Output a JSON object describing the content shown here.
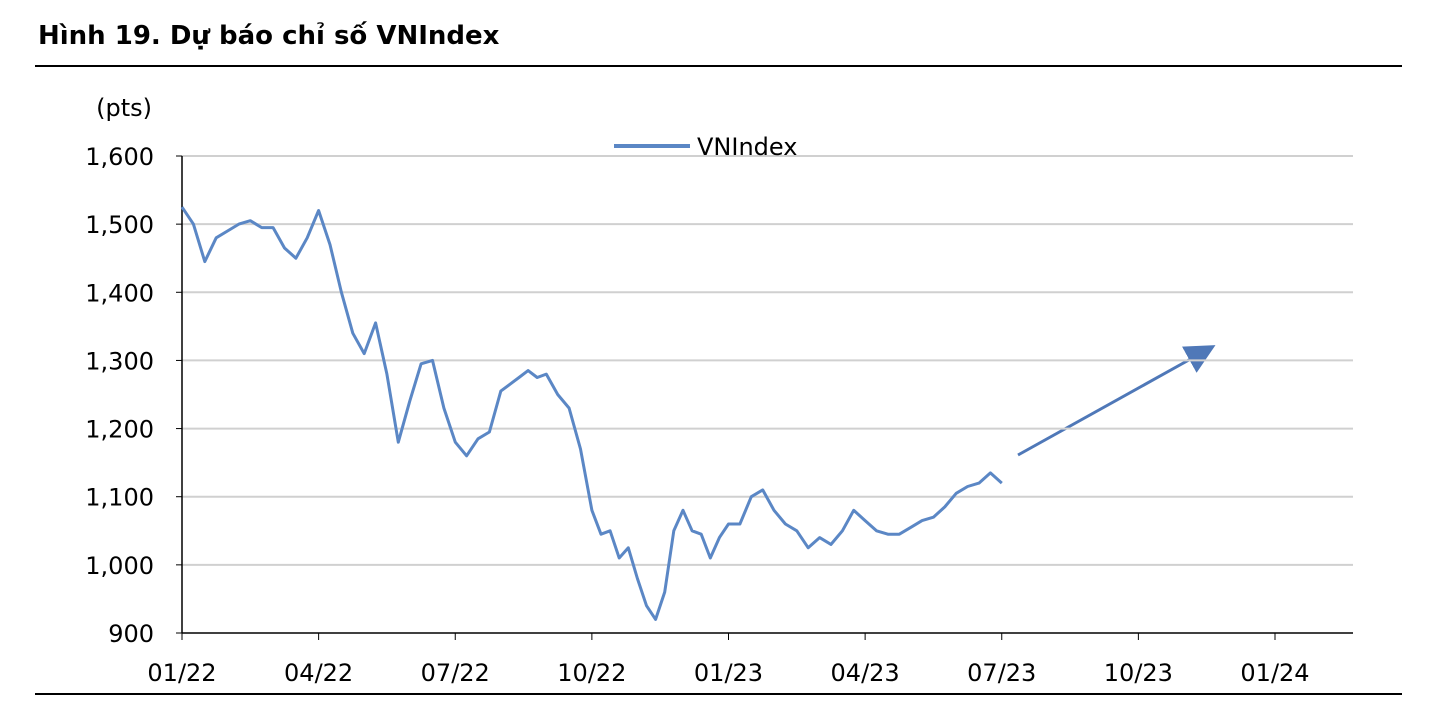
{
  "chart_data": {
    "type": "line",
    "title": "Hình 19. Dự báo chỉ số VNIndex",
    "y_label": "(pts)",
    "x": [
      "01/22",
      "01/22",
      "01/22",
      "01/22",
      "02/22",
      "02/22",
      "02/22",
      "02/22",
      "03/22",
      "03/22",
      "03/22",
      "03/22",
      "04/22",
      "04/22",
      "04/22",
      "04/22",
      "05/22",
      "05/22",
      "05/22",
      "05/22",
      "06/22",
      "06/22",
      "06/22",
      "06/22",
      "07/22",
      "07/22",
      "07/22",
      "07/22",
      "08/22",
      "08/22",
      "08/22",
      "08/22",
      "08/22",
      "09/22",
      "09/22",
      "09/22",
      "09/22",
      "10/22",
      "10/22",
      "10/22",
      "10/22",
      "10/22",
      "11/22",
      "11/22",
      "11/22",
      "11/22",
      "11/22",
      "12/22",
      "12/22",
      "12/22",
      "12/22",
      "12/22",
      "01/23",
      "01/23",
      "01/23",
      "01/23",
      "02/23",
      "02/23",
      "02/23",
      "02/23",
      "03/23",
      "03/23",
      "03/23",
      "03/23",
      "04/23",
      "04/23",
      "04/23",
      "04/23",
      "05/23",
      "05/23",
      "05/23",
      "05/23",
      "06/23",
      "06/23",
      "06/23",
      "06/23",
      "07/23"
    ],
    "series": [
      {
        "name": "VNIndex",
        "color": "#5b87c5",
        "values": [
          1525,
          1500,
          1445,
          1480,
          1490,
          1500,
          1505,
          1495,
          1495,
          1465,
          1450,
          1480,
          1520,
          1470,
          1400,
          1340,
          1310,
          1355,
          1280,
          1180,
          1240,
          1295,
          1300,
          1230,
          1180,
          1160,
          1185,
          1195,
          1255,
          1265,
          1275,
          1285,
          1275,
          1280,
          1250,
          1230,
          1170,
          1080,
          1045,
          1050,
          1010,
          1025,
          980,
          940,
          920,
          960,
          1050,
          1080,
          1050,
          1045,
          1010,
          1040,
          1060,
          1060,
          1100,
          1110,
          1080,
          1060,
          1050,
          1025,
          1040,
          1030,
          1050,
          1080,
          1065,
          1050,
          1045,
          1045,
          1055,
          1065,
          1070,
          1085,
          1105,
          1115,
          1120,
          1135,
          1120
        ]
      }
    ],
    "xticks": [
      "01/22",
      "04/22",
      "07/22",
      "10/22",
      "01/23",
      "04/23",
      "07/23",
      "10/23",
      "01/24"
    ],
    "ylim": [
      900,
      1600
    ],
    "yticks": [
      {
        "value": 900,
        "label": "900"
      },
      {
        "value": 1000,
        "label": "1,000"
      },
      {
        "value": 1100,
        "label": "1,100"
      },
      {
        "value": 1200,
        "label": "1,200"
      },
      {
        "value": 1300,
        "label": "1,300"
      },
      {
        "value": 1400,
        "label": "1,400"
      },
      {
        "value": 1500,
        "label": "1,500"
      },
      {
        "value": 1600,
        "label": "1,600"
      }
    ],
    "grid": true
  }
}
